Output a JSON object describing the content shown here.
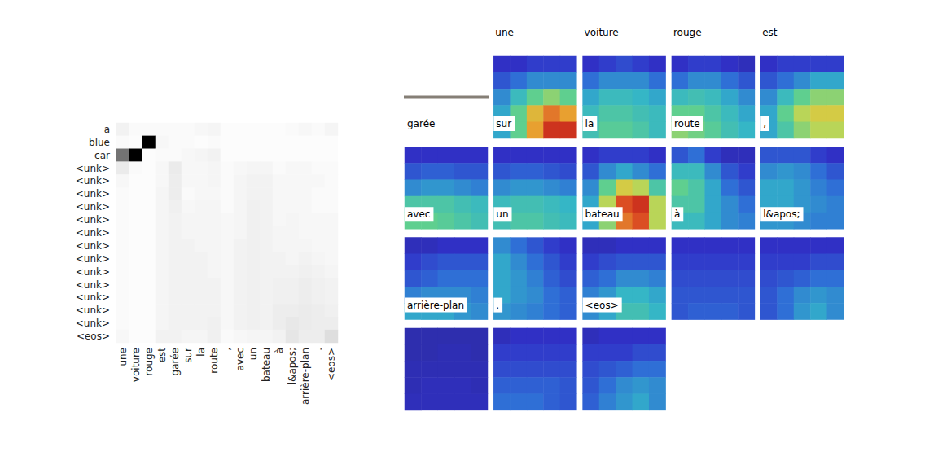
{
  "chart_data": [
    {
      "type": "heatmap",
      "color": "Greys",
      "zlim": [
        0,
        1
      ],
      "x": [
        "une",
        "voiture",
        "rouge",
        "est",
        "garée",
        "sur",
        "la",
        "route",
        ",",
        "avec",
        "un",
        "bateau",
        "à",
        "l&apos;",
        "arrière-plan",
        ".",
        "<eos>"
      ],
      "y": [
        "a",
        "blue",
        "car",
        "<unk>",
        "<unk>",
        "<unk>",
        "<unk>",
        "<unk>",
        "<unk>",
        "<unk>",
        "<unk>",
        "<unk>",
        "<unk>",
        "<unk>",
        "<unk>",
        "<unk>",
        "<eos>"
      ],
      "values": [
        [
          0.05,
          0.02,
          0.02,
          0.02,
          0.02,
          0.02,
          0.03,
          0.04,
          0.01,
          0.01,
          0.01,
          0.01,
          0.01,
          0.02,
          0.03,
          0.02,
          0.04
        ],
        [
          0.02,
          0.01,
          1.0,
          0.03,
          0.02,
          0.02,
          0.01,
          0.02,
          0.01,
          0.01,
          0.01,
          0.01,
          0.01,
          0.01,
          0.01,
          0.01,
          0.01
        ],
        [
          0.55,
          1.0,
          0.01,
          0.02,
          0.02,
          0.03,
          0.04,
          0.05,
          0.01,
          0.01,
          0.01,
          0.01,
          0.01,
          0.01,
          0.01,
          0.01,
          0.01
        ],
        [
          0.08,
          0.02,
          0.01,
          0.03,
          0.08,
          0.03,
          0.03,
          0.04,
          0.02,
          0.03,
          0.04,
          0.04,
          0.02,
          0.03,
          0.03,
          0.02,
          0.02
        ],
        [
          0.03,
          0.01,
          0.01,
          0.03,
          0.07,
          0.03,
          0.03,
          0.04,
          0.02,
          0.04,
          0.05,
          0.05,
          0.03,
          0.03,
          0.03,
          0.03,
          0.02
        ],
        [
          0.02,
          0.01,
          0.01,
          0.04,
          0.07,
          0.02,
          0.03,
          0.03,
          0.02,
          0.04,
          0.05,
          0.05,
          0.03,
          0.03,
          0.03,
          0.02,
          0.02
        ],
        [
          0.02,
          0.01,
          0.01,
          0.04,
          0.06,
          0.03,
          0.04,
          0.04,
          0.02,
          0.04,
          0.06,
          0.05,
          0.03,
          0.03,
          0.03,
          0.02,
          0.02
        ],
        [
          0.02,
          0.01,
          0.01,
          0.04,
          0.05,
          0.04,
          0.04,
          0.04,
          0.03,
          0.04,
          0.06,
          0.05,
          0.03,
          0.04,
          0.03,
          0.03,
          0.03
        ],
        [
          0.02,
          0.01,
          0.01,
          0.04,
          0.05,
          0.04,
          0.04,
          0.04,
          0.03,
          0.04,
          0.06,
          0.05,
          0.04,
          0.04,
          0.03,
          0.03,
          0.03
        ],
        [
          0.02,
          0.01,
          0.01,
          0.04,
          0.05,
          0.05,
          0.04,
          0.04,
          0.03,
          0.05,
          0.06,
          0.05,
          0.04,
          0.04,
          0.04,
          0.03,
          0.03
        ],
        [
          0.02,
          0.01,
          0.01,
          0.04,
          0.05,
          0.05,
          0.05,
          0.04,
          0.03,
          0.05,
          0.06,
          0.05,
          0.05,
          0.04,
          0.05,
          0.04,
          0.03
        ],
        [
          0.02,
          0.01,
          0.01,
          0.04,
          0.05,
          0.05,
          0.05,
          0.04,
          0.03,
          0.05,
          0.06,
          0.05,
          0.05,
          0.05,
          0.06,
          0.05,
          0.04
        ],
        [
          0.02,
          0.01,
          0.01,
          0.04,
          0.05,
          0.05,
          0.05,
          0.05,
          0.03,
          0.05,
          0.06,
          0.05,
          0.06,
          0.06,
          0.07,
          0.06,
          0.05
        ],
        [
          0.02,
          0.01,
          0.01,
          0.04,
          0.05,
          0.05,
          0.05,
          0.05,
          0.03,
          0.05,
          0.06,
          0.05,
          0.06,
          0.06,
          0.07,
          0.06,
          0.05
        ],
        [
          0.02,
          0.01,
          0.01,
          0.04,
          0.05,
          0.05,
          0.05,
          0.05,
          0.03,
          0.05,
          0.06,
          0.05,
          0.07,
          0.07,
          0.08,
          0.07,
          0.06
        ],
        [
          0.02,
          0.01,
          0.01,
          0.04,
          0.05,
          0.05,
          0.05,
          0.06,
          0.03,
          0.05,
          0.06,
          0.05,
          0.07,
          0.09,
          0.08,
          0.07,
          0.07
        ],
        [
          0.03,
          0.01,
          0.01,
          0.05,
          0.05,
          0.04,
          0.04,
          0.06,
          0.02,
          0.03,
          0.04,
          0.04,
          0.05,
          0.1,
          0.07,
          0.07,
          0.13
        ]
      ]
    },
    {
      "type": "heatmap_grid",
      "color": "jet",
      "zlim": [
        0,
        1
      ],
      "top_labels": [
        null,
        "une",
        "voiture",
        "rouge",
        "est"
      ],
      "panels": [
        {
          "label": "garée",
          "values": null
        },
        {
          "label": "sur",
          "values": [
            [
              0.12,
              0.12,
              0.15,
              0.15,
              0.15
            ],
            [
              0.2,
              0.25,
              0.3,
              0.3,
              0.3
            ],
            [
              0.3,
              0.4,
              0.5,
              0.55,
              0.5
            ],
            [
              0.35,
              0.5,
              0.7,
              0.8,
              0.75
            ],
            [
              0.35,
              0.5,
              0.75,
              0.9,
              0.9
            ]
          ]
        },
        {
          "label": "la",
          "values": [
            [
              0.12,
              0.15,
              0.18,
              0.15,
              0.12
            ],
            [
              0.25,
              0.3,
              0.3,
              0.3,
              0.25
            ],
            [
              0.35,
              0.4,
              0.4,
              0.38,
              0.35
            ],
            [
              0.4,
              0.45,
              0.45,
              0.42,
              0.4
            ],
            [
              0.42,
              0.48,
              0.48,
              0.45,
              0.4
            ]
          ]
        },
        {
          "label": "route",
          "values": [
            [
              0.12,
              0.15,
              0.15,
              0.12,
              0.1
            ],
            [
              0.25,
              0.3,
              0.3,
              0.25,
              0.2
            ],
            [
              0.4,
              0.42,
              0.4,
              0.35,
              0.3
            ],
            [
              0.5,
              0.5,
              0.45,
              0.4,
              0.35
            ],
            [
              0.55,
              0.52,
              0.48,
              0.42,
              0.38
            ]
          ]
        },
        {
          "label": ",",
          "values": [
            [
              0.12,
              0.15,
              0.15,
              0.15,
              0.15
            ],
            [
              0.2,
              0.25,
              0.3,
              0.35,
              0.35
            ],
            [
              0.3,
              0.4,
              0.5,
              0.55,
              0.55
            ],
            [
              0.35,
              0.5,
              0.6,
              0.65,
              0.65
            ],
            [
              0.35,
              0.45,
              0.55,
              0.6,
              0.6
            ]
          ]
        },
        {
          "label": "avec",
          "values": [
            [
              0.12,
              0.12,
              0.12,
              0.12,
              0.12
            ],
            [
              0.2,
              0.22,
              0.22,
              0.2,
              0.2
            ],
            [
              0.3,
              0.32,
              0.32,
              0.3,
              0.28
            ],
            [
              0.45,
              0.45,
              0.45,
              0.42,
              0.4
            ],
            [
              0.5,
              0.5,
              0.48,
              0.45,
              0.42
            ]
          ]
        },
        {
          "label": "un",
          "values": [
            [
              0.12,
              0.12,
              0.12,
              0.12,
              0.12
            ],
            [
              0.2,
              0.22,
              0.22,
              0.2,
              0.18
            ],
            [
              0.3,
              0.32,
              0.32,
              0.3,
              0.28
            ],
            [
              0.4,
              0.42,
              0.42,
              0.4,
              0.38
            ],
            [
              0.42,
              0.45,
              0.45,
              0.42,
              0.4
            ]
          ]
        },
        {
          "label": "bateau",
          "values": [
            [
              0.12,
              0.15,
              0.15,
              0.15,
              0.12
            ],
            [
              0.2,
              0.3,
              0.35,
              0.3,
              0.25
            ],
            [
              0.3,
              0.5,
              0.65,
              0.6,
              0.45
            ],
            [
              0.35,
              0.6,
              0.85,
              0.9,
              0.6
            ],
            [
              0.35,
              0.55,
              0.8,
              0.85,
              0.6
            ]
          ]
        },
        {
          "label": "à",
          "values": [
            [
              0.2,
              0.25,
              0.15,
              0.1,
              0.1
            ],
            [
              0.4,
              0.4,
              0.3,
              0.2,
              0.15
            ],
            [
              0.5,
              0.45,
              0.35,
              0.25,
              0.2
            ],
            [
              0.45,
              0.45,
              0.35,
              0.3,
              0.25
            ],
            [
              0.4,
              0.4,
              0.35,
              0.3,
              0.28
            ]
          ]
        },
        {
          "label": "l&apos;",
          "values": [
            [
              0.2,
              0.2,
              0.2,
              0.15,
              0.12
            ],
            [
              0.3,
              0.32,
              0.3,
              0.25,
              0.2
            ],
            [
              0.35,
              0.35,
              0.32,
              0.28,
              0.25
            ],
            [
              0.35,
              0.35,
              0.32,
              0.3,
              0.28
            ],
            [
              0.32,
              0.32,
              0.3,
              0.28,
              0.28
            ]
          ]
        },
        {
          "label": "arrière-plan",
          "values": [
            [
              0.1,
              0.1,
              0.12,
              0.12,
              0.12
            ],
            [
              0.15,
              0.18,
              0.2,
              0.2,
              0.2
            ],
            [
              0.2,
              0.22,
              0.25,
              0.25,
              0.25
            ],
            [
              0.28,
              0.3,
              0.3,
              0.3,
              0.28
            ],
            [
              0.35,
              0.35,
              0.35,
              0.32,
              0.3
            ]
          ]
        },
        {
          "label": ".",
          "values": [
            [
              0.3,
              0.25,
              0.2,
              0.15,
              0.12
            ],
            [
              0.35,
              0.3,
              0.25,
              0.2,
              0.15
            ],
            [
              0.35,
              0.32,
              0.28,
              0.22,
              0.18
            ],
            [
              0.35,
              0.32,
              0.3,
              0.25,
              0.22
            ],
            [
              0.32,
              0.3,
              0.28,
              0.25,
              0.22
            ]
          ]
        },
        {
          "label": "<eos>",
          "values": [
            [
              0.1,
              0.1,
              0.12,
              0.12,
              0.12
            ],
            [
              0.15,
              0.18,
              0.2,
              0.2,
              0.2
            ],
            [
              0.22,
              0.25,
              0.3,
              0.3,
              0.28
            ],
            [
              0.28,
              0.32,
              0.38,
              0.38,
              0.35
            ],
            [
              0.3,
              0.35,
              0.42,
              0.42,
              0.38
            ]
          ]
        },
        {
          "label": null,
          "values": [
            [
              0.12,
              0.12,
              0.12,
              0.12,
              0.12
            ],
            [
              0.15,
              0.15,
              0.15,
              0.15,
              0.15
            ],
            [
              0.18,
              0.18,
              0.18,
              0.18,
              0.18
            ],
            [
              0.2,
              0.2,
              0.2,
              0.2,
              0.2
            ],
            [
              0.2,
              0.22,
              0.22,
              0.22,
              0.2
            ]
          ]
        },
        {
          "label": null,
          "values": [
            [
              0.12,
              0.12,
              0.12,
              0.12,
              0.12
            ],
            [
              0.15,
              0.15,
              0.15,
              0.18,
              0.18
            ],
            [
              0.18,
              0.2,
              0.22,
              0.25,
              0.25
            ],
            [
              0.2,
              0.25,
              0.3,
              0.32,
              0.3
            ],
            [
              0.2,
              0.25,
              0.32,
              0.35,
              0.3
            ]
          ]
        },
        {
          "label": null,
          "values": [
            [
              0.08,
              0.08,
              0.08,
              0.08,
              0.08
            ],
            [
              0.08,
              0.08,
              0.09,
              0.09,
              0.08
            ],
            [
              0.09,
              0.09,
              0.09,
              0.09,
              0.09
            ],
            [
              0.09,
              0.1,
              0.1,
              0.1,
              0.09
            ],
            [
              0.1,
              0.1,
              0.1,
              0.1,
              0.1
            ]
          ]
        },
        {
          "label": null,
          "values": [
            [
              0.1,
              0.12,
              0.12,
              0.12,
              0.12
            ],
            [
              0.15,
              0.15,
              0.15,
              0.15,
              0.15
            ],
            [
              0.18,
              0.18,
              0.18,
              0.18,
              0.18
            ],
            [
              0.22,
              0.22,
              0.22,
              0.22,
              0.2
            ],
            [
              0.25,
              0.25,
              0.25,
              0.22,
              0.2
            ]
          ]
        },
        {
          "label": null,
          "values": [
            [
              0.1,
              0.12,
              0.12,
              0.12,
              0.12
            ],
            [
              0.15,
              0.15,
              0.15,
              0.18,
              0.18
            ],
            [
              0.18,
              0.2,
              0.22,
              0.25,
              0.25
            ],
            [
              0.2,
              0.25,
              0.3,
              0.32,
              0.3
            ],
            [
              0.22,
              0.28,
              0.32,
              0.35,
              0.3
            ]
          ]
        },
        {
          "label": null,
          "values": null
        },
        {
          "label": null,
          "values": null
        }
      ]
    }
  ]
}
